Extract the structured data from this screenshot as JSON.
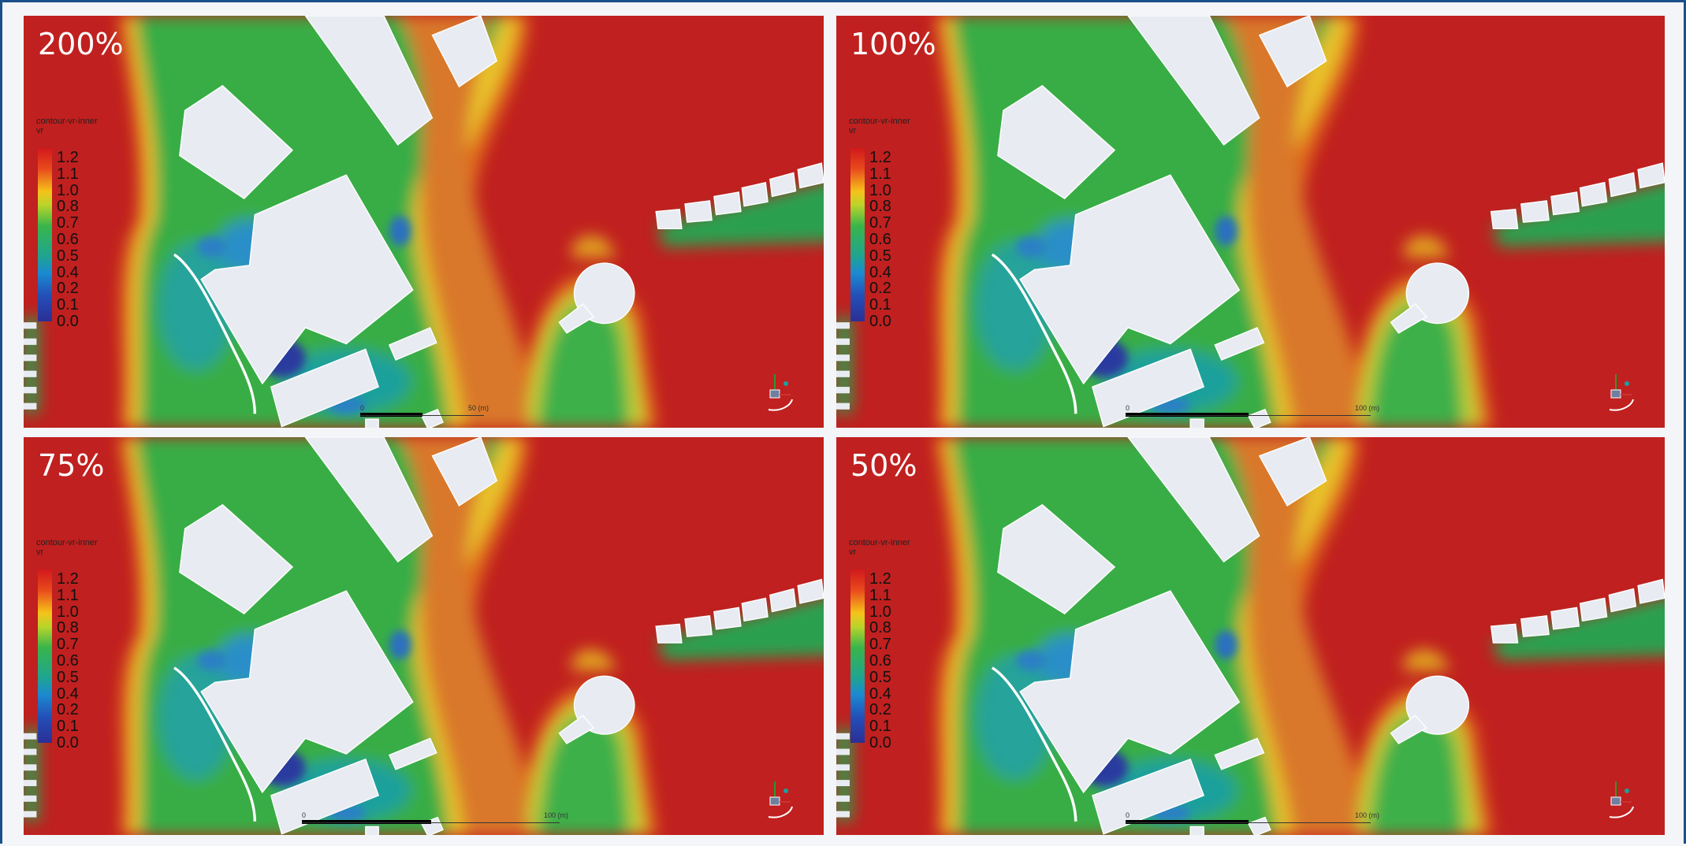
{
  "legend": {
    "title": "contour-vr-inner",
    "unit": "vr",
    "ticks": [
      "1.2",
      "1.1",
      "1.0",
      "0.8",
      "0.7",
      "0.6",
      "0.5",
      "0.4",
      "0.2",
      "0.1",
      "0.0"
    ]
  },
  "panels": [
    {
      "label": "200%",
      "scale_start": "0",
      "scale_end": "50 (m)"
    },
    {
      "label": "100%",
      "scale_start": "0",
      "scale_end": "100 (m)"
    },
    {
      "label": "75%",
      "scale_start": "0",
      "scale_end": "100 (m)"
    },
    {
      "label": "50%",
      "scale_start": "0",
      "scale_end": "100 (m)"
    }
  ]
}
